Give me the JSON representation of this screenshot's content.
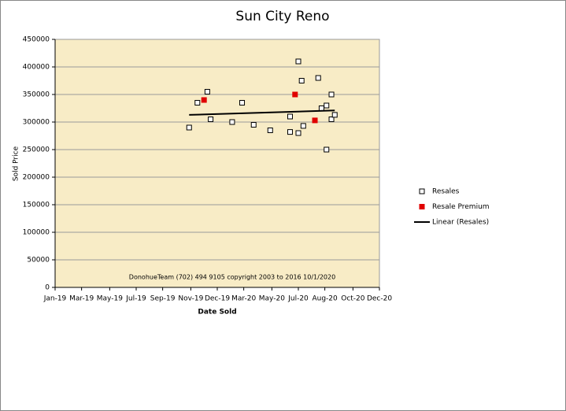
{
  "chart_data": {
    "type": "scatter",
    "title": "Sun City Reno",
    "x_label": "Date Sold",
    "y_label": "Sold Price",
    "annotation": "DonohueTeam   (702) 494 9105  copyright  2003  to 2016  10/1/2020",
    "plot_background": "#f8ecc6",
    "grid": true,
    "legend_position": "right",
    "xlim": [
      2019,
      2020.96
    ],
    "xticks": [
      {
        "value": 2019,
        "label": "Jan-19"
      },
      {
        "value": 2019.16,
        "label": "Mar-19"
      },
      {
        "value": 2019.33,
        "label": "May-19"
      },
      {
        "value": 2019.49,
        "label": "Jul-19"
      },
      {
        "value": 2019.65,
        "label": "Sep-19"
      },
      {
        "value": 2019.82,
        "label": "Nov-19"
      },
      {
        "value": 2019.98,
        "label": "Dec-19"
      },
      {
        "value": 2020.14,
        "label": "Mar-20"
      },
      {
        "value": 2020.31,
        "label": "May-20"
      },
      {
        "value": 2020.47,
        "label": "Jul-20"
      },
      {
        "value": 2020.63,
        "label": "Aug-20"
      },
      {
        "value": 2020.8,
        "label": "Oct-20"
      },
      {
        "value": 2020.96,
        "label": "Dec-20"
      }
    ],
    "ylim": [
      0,
      450000
    ],
    "yticks": [
      0,
      50000,
      100000,
      150000,
      200000,
      250000,
      300000,
      350000,
      400000,
      450000
    ],
    "series": [
      {
        "name": "Resales",
        "color": "#000000",
        "marker": "open-square",
        "x": [
          2019.81,
          2019.86,
          2019.92,
          2019.94,
          2020.07,
          2020.13,
          2020.2,
          2020.3,
          2020.42,
          2020.42,
          2020.47,
          2020.47,
          2020.49,
          2020.5,
          2020.59,
          2020.61,
          2020.64,
          2020.67,
          2020.64,
          2020.67,
          2020.69
        ],
        "values": [
          290000,
          335000,
          355000,
          305000,
          300000,
          335000,
          295000,
          285000,
          310000,
          282000,
          280000,
          410000,
          375000,
          293000,
          380000,
          325000,
          330000,
          350000,
          250000,
          305000,
          313000
        ]
      },
      {
        "name": "Resale Premium",
        "color": "#e00000",
        "marker": "filled-square",
        "x": [
          2019.9,
          2020.45,
          2020.57
        ],
        "values": [
          340000,
          350000,
          303000
        ]
      },
      {
        "name": "Linear (Resales)",
        "color": "#000000",
        "marker": "line",
        "x": [
          2019.81,
          2020.69
        ],
        "values": [
          313000,
          321000
        ]
      }
    ]
  }
}
